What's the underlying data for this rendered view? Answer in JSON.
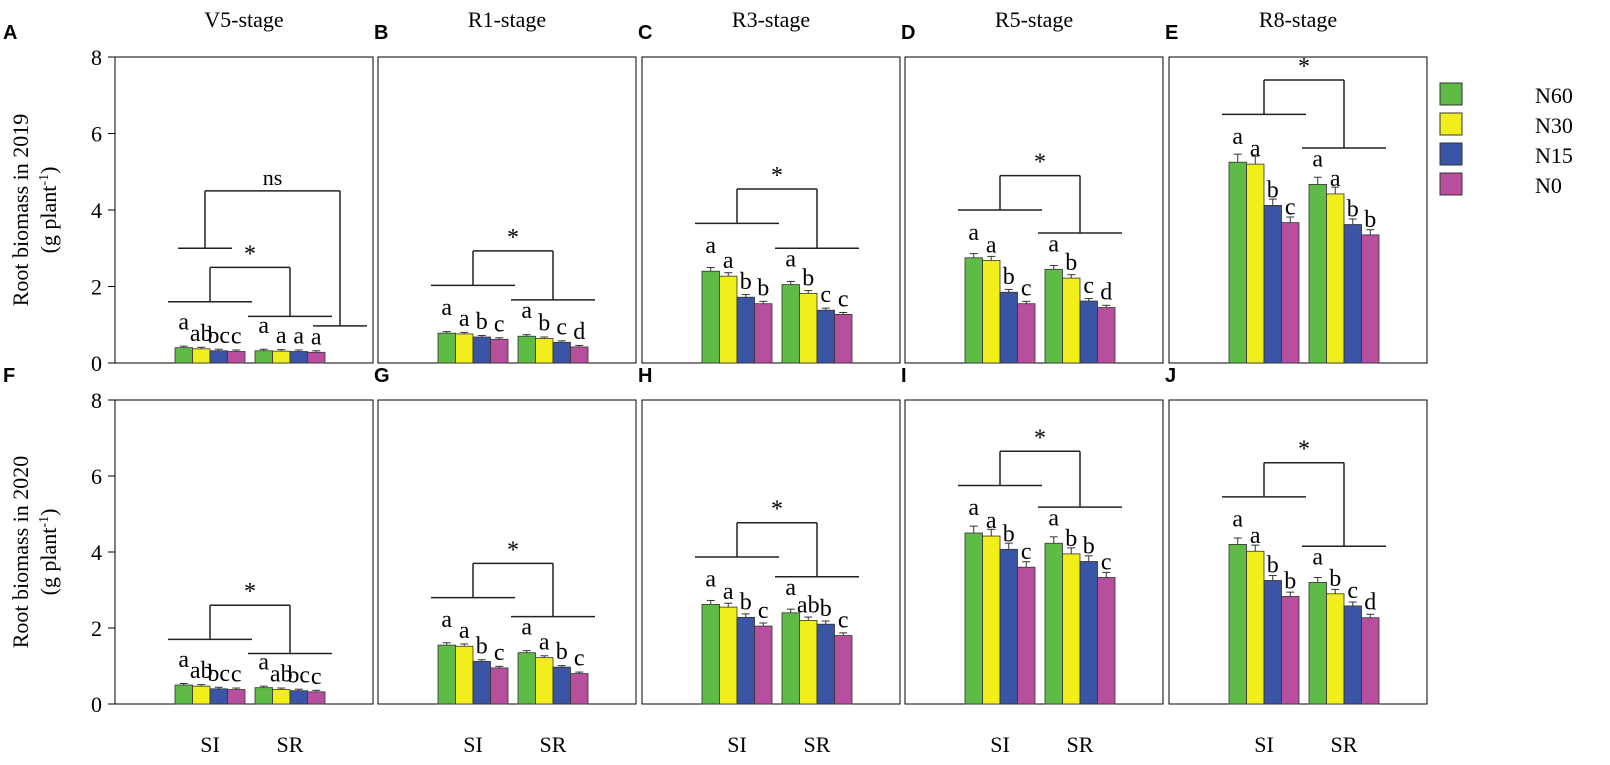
{
  "chart_data": {
    "type": "bar",
    "ylabel_top": "Root biomass in 2019",
    "ylabel_bottom": "Root biomass in 2020",
    "yunit": "(g plant",
    "yunit_sup": "-1",
    "yunit_end": ")",
    "ylim": [
      0,
      8
    ],
    "yticks": [
      "0",
      "2",
      "4",
      "6",
      "8"
    ],
    "categories": [
      "SI",
      "SR"
    ],
    "legend": {
      "placement": "right",
      "entries": [
        {
          "name": "N60",
          "color": "#5dbb46"
        },
        {
          "name": "N30",
          "color": "#f2ee1c"
        },
        {
          "name": "N15",
          "color": "#3a55a5"
        },
        {
          "name": "N0",
          "color": "#b84f9e"
        }
      ]
    },
    "panels": [
      {
        "letter": "A",
        "title": "V5-stage",
        "sig": "*",
        "sig2": "ns",
        "values": [
          [
            0.4,
            0.37,
            0.32,
            0.3
          ],
          [
            0.32,
            0.31,
            0.3,
            0.28
          ]
        ],
        "letters": [
          [
            "a",
            "ab",
            "bc",
            "c"
          ],
          [
            "a",
            "a",
            "a",
            "a"
          ]
        ]
      },
      {
        "letter": "B",
        "title": "R1-stage",
        "sig": "*",
        "values": [
          [
            0.78,
            0.76,
            0.68,
            0.62
          ],
          [
            0.7,
            0.64,
            0.54,
            0.42
          ]
        ],
        "letters": [
          [
            "a",
            "a",
            "b",
            "c"
          ],
          [
            "a",
            "b",
            "c",
            "d"
          ]
        ]
      },
      {
        "letter": "C",
        "title": "R3-stage",
        "sig": "*",
        "values": [
          [
            2.4,
            2.27,
            1.72,
            1.55
          ],
          [
            2.05,
            1.82,
            1.38,
            1.27
          ]
        ],
        "letters": [
          [
            "a",
            "a",
            "b",
            "b"
          ],
          [
            "a",
            "b",
            "c",
            "c"
          ]
        ]
      },
      {
        "letter": "D",
        "title": "R5-stage",
        "sig": "*",
        "values": [
          [
            2.75,
            2.68,
            1.85,
            1.55
          ],
          [
            2.45,
            2.22,
            1.62,
            1.45
          ]
        ],
        "letters": [
          [
            "a",
            "a",
            "b",
            "c"
          ],
          [
            "a",
            "b",
            "c",
            "d"
          ]
        ]
      },
      {
        "letter": "E",
        "title": "R8-stage",
        "sig": "*",
        "values": [
          [
            5.25,
            5.2,
            4.12,
            3.67
          ],
          [
            4.67,
            4.42,
            3.62,
            3.35
          ]
        ],
        "letters": [
          [
            "a",
            "a",
            "b",
            "c"
          ],
          [
            "a",
            "a",
            "b",
            "b"
          ]
        ]
      },
      {
        "letter": "F",
        "sig": "*",
        "values": [
          [
            0.5,
            0.47,
            0.4,
            0.38
          ],
          [
            0.43,
            0.38,
            0.35,
            0.32
          ]
        ],
        "letters": [
          [
            "a",
            "ab",
            "bc",
            "c"
          ],
          [
            "a",
            "ab",
            "bc",
            "c"
          ]
        ]
      },
      {
        "letter": "G",
        "sig": "*",
        "values": [
          [
            1.55,
            1.52,
            1.12,
            0.95
          ],
          [
            1.35,
            1.22,
            0.97,
            0.8
          ]
        ],
        "letters": [
          [
            "a",
            "a",
            "b",
            "c"
          ],
          [
            "a",
            "a",
            "b",
            "c"
          ]
        ]
      },
      {
        "letter": "H",
        "sig": "*",
        "values": [
          [
            2.62,
            2.55,
            2.28,
            2.05
          ],
          [
            2.4,
            2.2,
            2.1,
            1.8
          ]
        ],
        "letters": [
          [
            "a",
            "a",
            "b",
            "c"
          ],
          [
            "a",
            "ab",
            "b",
            "c"
          ]
        ]
      },
      {
        "letter": "I",
        "sig": "*",
        "values": [
          [
            4.5,
            4.42,
            4.07,
            3.6
          ],
          [
            4.23,
            3.95,
            3.75,
            3.33
          ]
        ],
        "letters": [
          [
            "a",
            "a",
            "b",
            "c"
          ],
          [
            "a",
            "b",
            "b",
            "c"
          ]
        ]
      },
      {
        "letter": "J",
        "sig": "*",
        "values": [
          [
            4.2,
            4.02,
            3.25,
            2.83
          ],
          [
            3.2,
            2.9,
            2.58,
            2.27
          ]
        ],
        "letters": [
          [
            "a",
            "a",
            "b",
            "b"
          ],
          [
            "a",
            "b",
            "c",
            "d"
          ]
        ]
      }
    ]
  }
}
